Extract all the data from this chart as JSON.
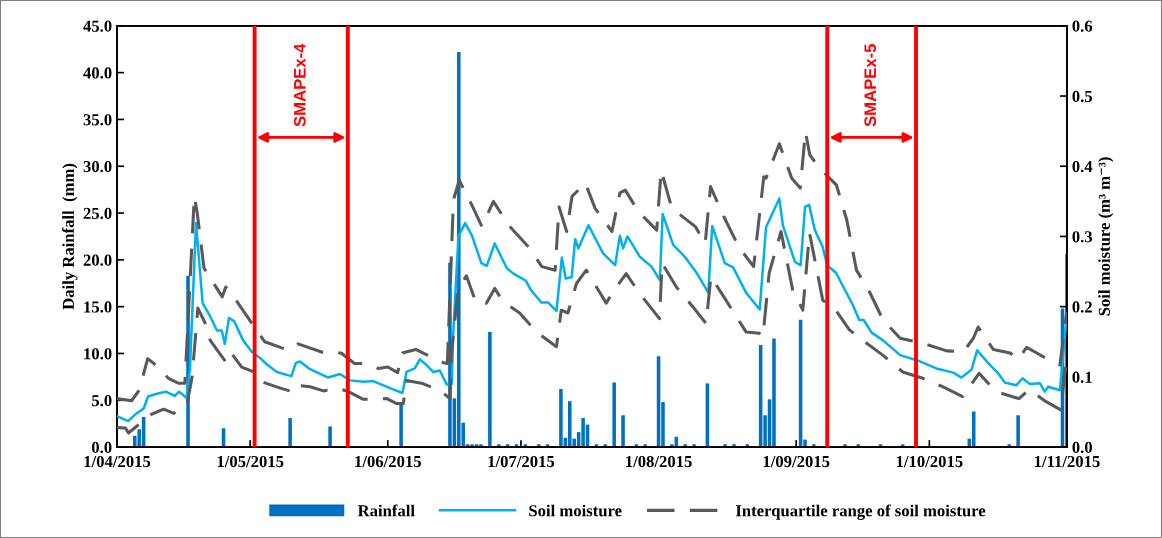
{
  "chart_data": {
    "type": "line",
    "ylabel": "Daily Rainfall  (mm)",
    "y2label": "Soil moisture (m³ m⁻³)",
    "xlim": [
      "2015-04-01",
      "2015-11-01"
    ],
    "xticks": [
      {
        "value": "2015-04-01",
        "label": "1/04/2015"
      },
      {
        "value": "2015-05-01",
        "label": "1/05/2015"
      },
      {
        "value": "2015-06-01",
        "label": "1/06/2015"
      },
      {
        "value": "2015-07-01",
        "label": "1/07/2015"
      },
      {
        "value": "2015-08-01",
        "label": "1/08/2015"
      },
      {
        "value": "2015-09-01",
        "label": "1/09/2015"
      },
      {
        "value": "2015-10-01",
        "label": "1/10/2015"
      },
      {
        "value": "2015-11-01",
        "label": "1/11/2015"
      }
    ],
    "ylim": [
      0,
      45
    ],
    "yticks": [
      {
        "value": 0,
        "label": "0.0"
      },
      {
        "value": 5,
        "label": "5.0"
      },
      {
        "value": 10,
        "label": "10.0"
      },
      {
        "value": 15,
        "label": "15.0"
      },
      {
        "value": 20,
        "label": "20.0"
      },
      {
        "value": 25,
        "label": "25.0"
      },
      {
        "value": 30,
        "label": "30.0"
      },
      {
        "value": 35,
        "label": "35.0"
      },
      {
        "value": 40,
        "label": "40.0"
      },
      {
        "value": 45,
        "label": "45.0"
      }
    ],
    "y2lim": [
      0,
      0.6
    ],
    "y2ticks": [
      {
        "value": 0,
        "label": "0.0"
      },
      {
        "value": 0.1,
        "label": "0.1"
      },
      {
        "value": 0.2,
        "label": "0.2"
      },
      {
        "value": 0.3,
        "label": "0.3"
      },
      {
        "value": 0.4,
        "label": "0.4"
      },
      {
        "value": 0.5,
        "label": "0.5"
      },
      {
        "value": 0.6,
        "label": "0.6"
      }
    ],
    "grid": false,
    "legend": "bottom",
    "ref_lines": [
      {
        "axis": "x",
        "value": "2015-05-02",
        "color": "#ff0000"
      },
      {
        "axis": "x",
        "value": "2015-05-23",
        "color": "#ff0000"
      },
      {
        "axis": "x",
        "value": "2015-09-08",
        "color": "#ff0000"
      },
      {
        "axis": "x",
        "value": "2015-09-28",
        "color": "#ff0000"
      }
    ],
    "annotations": [
      "SMAPEx-4",
      "SMAPEx-5"
    ],
    "series": [
      {
        "name": "Rainfall",
        "type": "bar",
        "color": "#0070c0",
        "x": [
          "2015-04-05",
          "2015-04-06",
          "2015-04-07",
          "2015-04-17",
          "2015-04-18",
          "2015-04-25",
          "2015-05-10",
          "2015-05-19",
          "2015-06-04",
          "2015-06-15",
          "2015-06-16",
          "2015-06-17",
          "2015-06-18",
          "2015-06-19",
          "2015-06-20",
          "2015-06-21",
          "2015-06-22",
          "2015-06-24",
          "2015-06-26",
          "2015-06-28",
          "2015-06-30",
          "2015-07-02",
          "2015-07-05",
          "2015-07-07",
          "2015-07-10",
          "2015-07-11",
          "2015-07-12",
          "2015-07-13",
          "2015-07-14",
          "2015-07-15",
          "2015-07-16",
          "2015-07-18",
          "2015-07-20",
          "2015-07-22",
          "2015-07-24",
          "2015-07-27",
          "2015-07-29",
          "2015-08-01",
          "2015-08-02",
          "2015-08-04",
          "2015-08-05",
          "2015-08-07",
          "2015-08-09",
          "2015-08-12",
          "2015-08-16",
          "2015-08-18",
          "2015-08-21",
          "2015-08-24",
          "2015-08-25",
          "2015-08-26",
          "2015-08-27",
          "2015-09-02",
          "2015-09-03",
          "2015-09-05",
          "2015-09-08",
          "2015-09-12",
          "2015-09-15",
          "2015-09-20",
          "2015-09-25",
          "2015-10-10",
          "2015-10-11",
          "2015-10-19",
          "2015-10-21",
          "2015-10-31",
          "2015-11-01"
        ],
        "values": [
          1.2,
          1.9,
          3.2,
          18.3,
          null,
          2.0,
          3.1,
          2.2,
          4.7,
          19.7,
          5.2,
          42.2,
          2.6,
          0.3,
          0.3,
          0.3,
          0.3,
          12.3,
          0.3,
          0.3,
          0.3,
          0.3,
          0.3,
          0.3,
          6.2,
          1.0,
          4.9,
          0.9,
          1.6,
          3.1,
          2.4,
          0.3,
          0.3,
          6.9,
          3.4,
          0.3,
          0.3,
          9.7,
          4.8,
          0.3,
          1.1,
          0.3,
          0.3,
          6.8,
          0.3,
          0.3,
          0.3,
          10.9,
          3.4,
          5.1,
          11.6,
          13.6,
          0.8,
          0.3,
          null,
          0.3,
          0.3,
          0.3,
          0.3,
          0.9,
          3.8,
          0.3,
          3.4,
          14.8,
          20.6
        ]
      },
      {
        "name": "Soil moisture",
        "axis": "y2",
        "color": "#00b0f0",
        "line_style": "solid",
        "x": [
          "2015-04-01",
          "2015-04-03T12:00",
          "2015-04-05",
          "2015-04-07",
          "2015-04-08",
          "2015-04-10",
          "2015-04-12",
          "2015-04-14",
          "2015-04-15",
          "2015-04-16T16:00",
          "2015-04-17T10:00",
          "2015-04-18T19:00",
          "2015-04-20T07:00",
          "2015-04-22",
          "2015-04-23T12:00",
          "2015-04-24T14:00",
          "2015-04-25T07:00",
          "2015-04-26T05:00",
          "2015-04-27T10:00",
          "2015-04-29T10:00",
          "2015-05-01T07:00",
          "2015-05-03T05:00",
          "2015-05-04T17:00",
          "2015-05-07",
          "2015-05-10T07:00",
          "2015-05-11T07:00",
          "2015-05-12T05:00",
          "2015-05-14T12:00",
          "2015-05-18T14:00",
          "2015-05-21T05:00",
          "2015-05-23T12:00",
          "2015-05-26T12:00",
          "2015-05-28T17:00",
          "2015-06-01T12:00",
          "2015-06-04T07:00",
          "2015-06-05T05:00",
          "2015-06-07T02:00",
          "2015-06-08T05:00",
          "2015-06-09T17:00",
          "2015-06-11T05:00",
          "2015-06-12T17:00",
          "2015-06-14T07:00",
          "2015-06-15T10:00",
          "2015-06-15T17:00",
          "2015-06-16T22:00",
          "2015-06-18T10:00",
          "2015-06-19T22:00",
          "2015-06-22T02:00",
          "2015-06-23T07:00",
          "2015-06-25T02:00",
          "2015-06-27T19:00",
          "2015-06-29T07:00",
          "2015-07-02T02:00",
          "2015-07-03T05:00",
          "2015-07-05T14:00",
          "2015-07-07T02:00",
          "2015-07-09",
          "2015-07-10T05:00",
          "2015-07-11T02:00",
          "2015-07-12T10:00",
          "2015-07-13T05:00",
          "2015-07-13T22:00",
          "2015-07-16T05:00",
          "2015-07-19T12:00",
          "2015-07-22T05:00",
          "2015-07-23T07:00",
          "2015-07-24",
          "2015-07-25",
          "2015-07-27T19:00",
          "2015-07-30T10:00",
          "2015-08-01T07:00",
          "2015-08-01T22:00",
          "2015-08-04T07:00",
          "2015-08-06T22:00",
          "2015-08-09T14:00",
          "2015-08-12T05:00",
          "2015-08-13T02:00",
          "2015-08-15T22:00",
          "2015-08-17T19:00",
          "2015-08-20T19:00",
          "2015-08-23T19:00",
          "2015-08-25T05:00",
          "2015-08-28T05:00",
          "2015-08-29",
          "2015-08-31T17:00",
          "2015-09-02",
          "2015-09-03",
          "2015-09-03T22:00",
          "2015-09-05T05:00",
          "2015-09-06T22:00",
          "2015-09-08",
          "2015-09-10",
          "2015-09-13T19:00",
          "2015-09-15T05:00",
          "2015-09-16T05:00",
          "2015-09-18",
          "2015-09-20T14:00",
          "2015-09-24T10:00",
          "2015-09-28T12:00",
          "2015-10-02T14:00",
          "2015-10-06T10:00",
          "2015-10-08T05:00",
          "2015-10-10T12:00",
          "2015-10-11T19:00",
          "2015-10-13T22:00",
          "2015-10-16T12:00",
          "2015-10-18",
          "2015-10-20T14:00",
          "2015-10-22",
          "2015-10-23T14:00",
          "2015-10-25T22:00",
          "2015-10-27",
          "2015-10-27T19:00",
          "2015-10-30T10:00",
          "2015-10-31T12:00",
          "2015-11-01"
        ],
        "values": [
          0.044,
          0.037,
          0.046,
          0.055,
          0.072,
          0.076,
          0.079,
          0.073,
          0.079,
          0.07,
          0.11,
          0.319,
          0.205,
          0.186,
          0.166,
          0.166,
          0.147,
          0.184,
          0.179,
          0.152,
          0.136,
          0.127,
          0.118,
          0.107,
          0.101,
          0.12,
          0.122,
          0.111,
          0.099,
          0.104,
          0.095,
          0.093,
          0.094,
          0.084,
          0.077,
          0.107,
          0.112,
          0.125,
          0.117,
          0.107,
          0.109,
          0.089,
          0.09,
          0.157,
          0.3,
          0.319,
          0.302,
          0.262,
          0.258,
          0.29,
          0.255,
          0.247,
          0.237,
          0.224,
          0.206,
          0.206,
          0.194,
          0.27,
          0.24,
          0.242,
          0.296,
          0.283,
          0.316,
          0.276,
          0.259,
          0.301,
          0.283,
          0.3,
          0.271,
          0.257,
          0.238,
          0.332,
          0.288,
          0.271,
          0.248,
          0.22,
          0.315,
          0.262,
          0.256,
          0.219,
          0.196,
          0.313,
          0.354,
          0.316,
          0.264,
          0.259,
          0.342,
          0.345,
          0.309,
          0.286,
          0.259,
          0.248,
          0.202,
          0.181,
          0.181,
          0.163,
          0.152,
          0.131,
          0.123,
          0.112,
          0.106,
          0.099,
          0.11,
          0.138,
          0.122,
          0.105,
          0.092,
          0.088,
          0.098,
          0.09,
          0.091,
          0.079,
          0.086,
          0.081,
          0.157,
          0.19
        ]
      },
      {
        "name": "Interquartile range of soil moisture",
        "axis": "y2",
        "color": "#595959",
        "line_style": "dashed",
        "x": [
          "2015-04-01",
          "2015-04-04T07:00",
          "2015-04-06",
          "2015-04-07T22:00",
          "2015-04-09T17:00",
          "2015-04-12T14:00",
          "2015-04-14T19:00",
          "2015-04-16T07:00",
          "2015-04-18T10:00",
          "2015-04-19T02:00",
          "2015-04-20T14:00",
          "2015-04-24T17:00",
          "2015-04-25T12:00",
          "2015-04-27T07:00",
          "2015-05-01T10:00",
          "2015-05-04T07:00",
          "2015-05-09T14:00",
          "2015-05-11T19:00",
          "2015-05-17T19:00",
          "2015-05-21T12:00",
          "2015-05-24T12:00",
          "2015-05-26T19:00",
          "2015-05-29T19:00",
          "2015-06-01",
          "2015-06-03T05:00",
          "2015-06-04T07:00",
          "2015-06-07T07:00",
          "2015-06-09T22:00",
          "2015-06-13T14:00",
          "2015-06-14T10:00",
          "2015-06-15T19:00",
          "2015-06-17T02:00",
          "2015-06-19T22:00",
          "2015-06-22T05:00",
          "2015-06-24T19:00",
          "2015-06-28T05:00",
          "2015-07-02T17:00",
          "2015-07-05T17:00",
          "2015-07-08T17:00",
          "2015-07-09T14:00",
          "2015-07-11T07:00",
          "2015-07-12T12:00",
          "2015-07-15T12:00",
          "2015-07-17T17:00",
          "2015-07-21T12:00",
          "2015-07-23T07:00",
          "2015-07-24T12:00",
          "2015-07-27T12:00",
          "2015-07-31T14:00",
          "2015-08-01T14:00",
          "2015-08-04",
          "2015-08-09T07:00",
          "2015-08-11T12:00",
          "2015-08-12T17:00",
          "2015-08-15T17:00",
          "2015-08-19T02:00",
          "2015-08-22T10:00",
          "2015-08-24T17:00",
          "2015-08-25T05:00",
          "2015-08-28T05:00",
          "2015-08-31",
          "2015-09-01T22:00",
          "2015-09-03T02:00",
          "2015-09-04T02:00",
          "2015-09-06",
          "2015-09-08T05:00",
          "2015-09-10T02:00",
          "2015-09-12T10:00",
          "2015-09-14T14:00",
          "2015-09-17T07:00",
          "2015-09-20T14:00",
          "2015-09-24T10:00",
          "2015-09-28T22:00",
          "2015-10-04T22:00",
          "2015-10-08T17:00",
          "2015-10-10T22:00",
          "2015-10-12",
          "2015-10-15T10:00",
          "2015-10-19T05:00",
          "2015-10-21",
          "2015-10-22T22:00",
          "2015-10-25T05:00",
          "2015-10-27T10:00",
          "2015-10-30T10:00",
          "2015-10-31T22:00"
        ],
        "values": [
          0.069,
          0.066,
          0.081,
          0.126,
          0.117,
          0.098,
          0.091,
          0.091,
          0.357,
          0.333,
          0.255,
          0.214,
          0.228,
          0.214,
          0.176,
          0.15,
          0.138,
          0.147,
          0.134,
          0.134,
          0.119,
          0.119,
          0.112,
          0.114,
          0.106,
          0.134,
          0.139,
          0.131,
          0.12,
          0.119,
          0.352,
          0.38,
          0.345,
          0.314,
          0.35,
          0.316,
          0.285,
          0.257,
          0.252,
          0.342,
          0.307,
          0.357,
          0.376,
          0.34,
          0.307,
          0.362,
          0.366,
          0.335,
          0.309,
          0.394,
          0.34,
          0.314,
          0.29,
          0.371,
          0.328,
          0.285,
          0.257,
          0.385,
          0.383,
          0.432,
          0.383,
          0.369,
          0.449,
          0.416,
          0.399,
          0.385,
          0.373,
          0.323,
          0.252,
          0.224,
          0.181,
          0.155,
          0.149,
          0.137,
          0.136,
          0.155,
          0.171,
          0.139,
          0.134,
          0.125,
          0.142,
          0.134,
          0.126,
          0.117,
          0.191
        ]
      },
      {
        "axis": "y2",
        "color": "#595959",
        "line_style": "dashed",
        "x": [
          "2015-04-01",
          "2015-04-02T22:00",
          "2015-04-03T14:00",
          "2015-04-05T12:00",
          "2015-04-08T12:00",
          "2015-04-11T12:00",
          "2015-04-13T19:00",
          "2015-04-16T19:00",
          "2015-04-17T22:00",
          "2015-04-19T05:00",
          "2015-04-21T07:00",
          "2015-04-22",
          "2015-04-25T10:00",
          "2015-04-26T12:00",
          "2015-04-29T02:00",
          "2015-05-01T19:00",
          "2015-05-03T14:00",
          "2015-05-07T19:00",
          "2015-05-10T10:00",
          "2015-05-11T02:00",
          "2015-05-14T12:00",
          "2015-05-17T12:00",
          "2015-05-20T12:00",
          "2015-05-22T19:00",
          "2015-05-26T12:00",
          "2015-05-31T19:00",
          "2015-06-03",
          "2015-06-04T12:00",
          "2015-06-05T05:00",
          "2015-06-08T14:00",
          "2015-06-12T17:00",
          "2015-06-15",
          "2015-06-15T07:00",
          "2015-06-16T19:00",
          "2015-06-18T17:00",
          "2015-06-20T22:00",
          "2015-06-23T05:00",
          "2015-06-25T02:00",
          "2015-06-27",
          "2015-06-30T17:00",
          "2015-07-04T12:00",
          "2015-07-09",
          "2015-07-10T02:00",
          "2015-07-11T14:00",
          "2015-07-13T12:00",
          "2015-07-15T17:00",
          "2015-07-20T05:00",
          "2015-07-21T17:00",
          "2015-07-24T17:00",
          "2015-07-27T17:00",
          "2015-08-01T05:00",
          "2015-08-01T19:00",
          "2015-08-05",
          "2015-08-08T17:00",
          "2015-08-11T17:00",
          "2015-08-12T19:00",
          "2015-08-16T05:00",
          "2015-08-20T17:00",
          "2015-08-23T17:00",
          "2015-08-24T12:00",
          "2015-08-25T22:00",
          "2015-08-28T14:00",
          "2015-08-31T05:00",
          "2015-09-02T12:00",
          "2015-09-04",
          "2015-09-07",
          "2015-09-09T14:00",
          "2015-09-13",
          "2015-09-16",
          "2015-09-20T12:00",
          "2015-09-25",
          "2015-09-29T12:00",
          "2015-10-04",
          "2015-10-08T12:00",
          "2015-10-12T05:00",
          "2015-10-16",
          "2015-10-21T05:00",
          "2015-10-23T12:00",
          "2015-10-27T05:00",
          "2015-10-30T14:00",
          "2015-10-31T17:00"
        ],
        "values": [
          0.028,
          0.027,
          0.02,
          0.03,
          0.046,
          0.054,
          0.048,
          0.062,
          0.1,
          0.198,
          0.171,
          0.152,
          0.122,
          0.136,
          0.114,
          0.107,
          0.093,
          0.084,
          0.079,
          0.088,
          0.086,
          0.08,
          0.084,
          0.08,
          0.068,
          0.069,
          0.062,
          0.062,
          0.095,
          0.091,
          0.081,
          0.069,
          0.129,
          0.224,
          0.244,
          0.205,
          0.205,
          0.226,
          0.207,
          0.191,
          0.164,
          0.143,
          0.195,
          0.191,
          0.233,
          0.252,
          0.205,
          0.221,
          0.247,
          0.219,
          0.183,
          0.262,
          0.228,
          0.2,
          0.176,
          0.243,
          0.209,
          0.164,
          0.162,
          0.157,
          0.248,
          0.307,
          0.224,
          0.195,
          0.305,
          0.209,
          0.198,
          0.167,
          0.152,
          0.131,
          0.107,
          0.098,
          0.086,
          0.072,
          0.105,
          0.079,
          0.069,
          0.082,
          0.065,
          0.053,
          0.114
        ]
      }
    ]
  }
}
